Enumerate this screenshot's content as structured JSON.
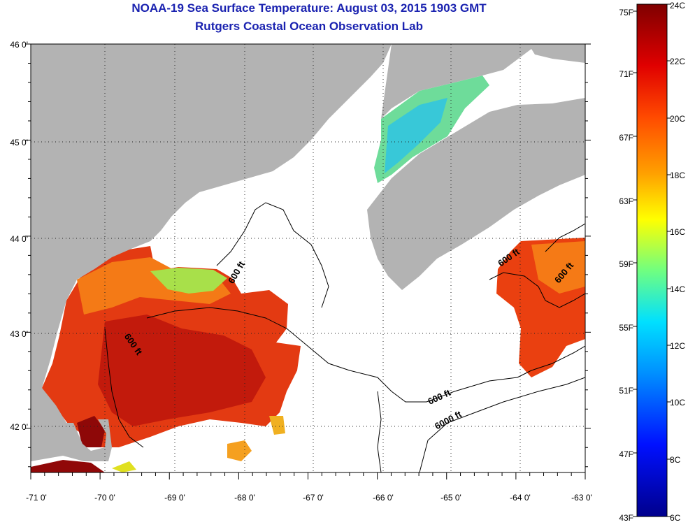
{
  "header": {
    "title": "NOAA-19 Sea Surface Temperature:  August 03, 2015 1903 GMT",
    "subtitle": "Rutgers Coastal Ocean Observation Lab"
  },
  "map": {
    "lat_ticks": [
      "46 0'",
      "45 0'",
      "44 0'",
      "43 0'",
      "42 0'"
    ],
    "lon_ticks": [
      "-71 0'",
      "-70 0'",
      "-69 0'",
      "-68 0'",
      "-67 0'",
      "-66 0'",
      "-65 0'",
      "-64 0'",
      "-63 0'"
    ],
    "contour_labels": [
      "600 ft",
      "600 ft",
      "600 ft",
      "600 ft",
      "6000 ft"
    ]
  },
  "colorbar": {
    "fahrenheit": [
      "75F",
      "71F",
      "67F",
      "63F",
      "59F",
      "55F",
      "51F",
      "47F",
      "43F"
    ],
    "celsius": [
      "24C",
      "22C",
      "20C",
      "18C",
      "16C",
      "14C",
      "12C",
      "10C",
      "8C",
      "6C"
    ]
  },
  "colors": {
    "land": "#b3b3b3",
    "title": "#1a22b0",
    "ocean_clouds": "#ffffff"
  }
}
